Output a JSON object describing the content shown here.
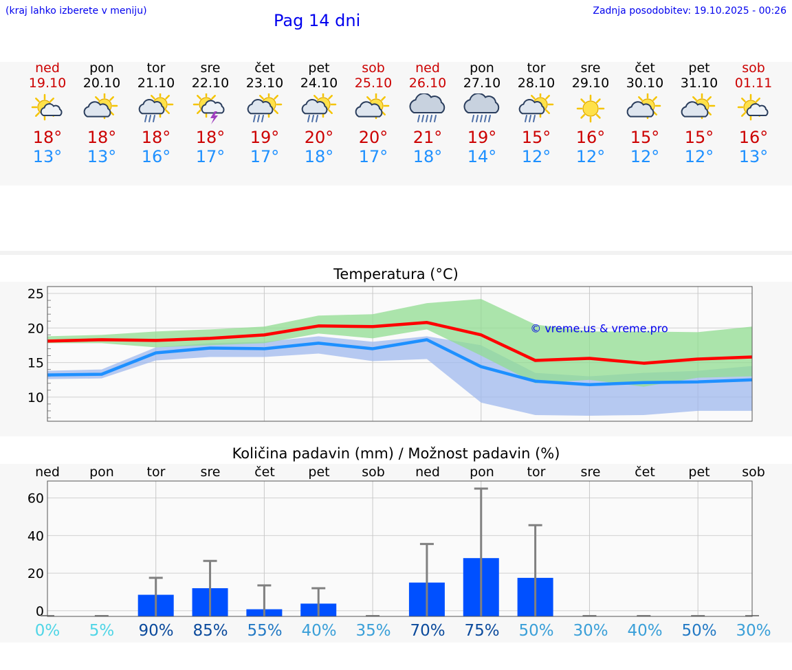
{
  "header": {
    "hint": "(kraj lahko izberete v meniju)",
    "title": "Pag 14 dni",
    "updated": "Zadnja posodobitev: 19.10.2025 - 00:26"
  },
  "days": [
    {
      "name": "ned",
      "date": "19.10",
      "icon": "sun-cloud-icon",
      "max": "18°",
      "min": "13°",
      "weekend": true
    },
    {
      "name": "pon",
      "date": "20.10",
      "icon": "partly-cloudy-icon",
      "max": "18°",
      "min": "13°",
      "weekend": false
    },
    {
      "name": "tor",
      "date": "21.10",
      "icon": "sun-cloud-rain-icon",
      "max": "18°",
      "min": "16°",
      "weekend": false
    },
    {
      "name": "sre",
      "date": "22.10",
      "icon": "sun-cloud-thunder-icon",
      "max": "18°",
      "min": "17°",
      "weekend": false
    },
    {
      "name": "čet",
      "date": "23.10",
      "icon": "sun-cloud-rain-icon",
      "max": "19°",
      "min": "17°",
      "weekend": false
    },
    {
      "name": "pet",
      "date": "24.10",
      "icon": "sun-cloud-rain-icon",
      "max": "20°",
      "min": "18°",
      "weekend": false
    },
    {
      "name": "sob",
      "date": "25.10",
      "icon": "partly-cloudy-icon",
      "max": "20°",
      "min": "17°",
      "weekend": true
    },
    {
      "name": "ned",
      "date": "26.10",
      "icon": "heavy-rain-icon",
      "max": "21°",
      "min": "18°",
      "weekend": true
    },
    {
      "name": "pon",
      "date": "27.10",
      "icon": "heavy-rain-icon",
      "max": "19°",
      "min": "14°",
      "weekend": false
    },
    {
      "name": "tor",
      "date": "28.10",
      "icon": "sun-cloud-rain-icon",
      "max": "15°",
      "min": "12°",
      "weekend": false
    },
    {
      "name": "sre",
      "date": "29.10",
      "icon": "sun-icon",
      "max": "16°",
      "min": "12°",
      "weekend": false
    },
    {
      "name": "čet",
      "date": "30.10",
      "icon": "partly-cloudy-icon",
      "max": "15°",
      "min": "12°",
      "weekend": false
    },
    {
      "name": "pet",
      "date": "31.10",
      "icon": "partly-cloudy-icon",
      "max": "15°",
      "min": "12°",
      "weekend": false
    },
    {
      "name": "sob",
      "date": "01.11",
      "icon": "sun-cloud-icon",
      "max": "16°",
      "min": "13°",
      "weekend": true
    }
  ],
  "colors": {
    "max_line": "#ff0000",
    "min_line": "#1e90ff",
    "max_band": "#90dc90",
    "min_band": "#9fb8ee",
    "bar": "#0050ff",
    "whisker": "#808080"
  },
  "chart_data": [
    {
      "type": "line",
      "title": "Temperatura (°C)",
      "watermark": "© vreme.us & vreme.pro",
      "ylim": [
        6.5,
        26
      ],
      "yticks": [
        10,
        15,
        20,
        25
      ],
      "x": [
        0,
        1,
        2,
        3,
        4,
        5,
        6,
        7,
        8,
        9,
        10,
        11,
        12,
        13
      ],
      "series": [
        {
          "name": "max",
          "values": [
            18.1,
            18.3,
            18.2,
            18.5,
            19.0,
            20.3,
            20.2,
            20.8,
            19.0,
            15.3,
            15.6,
            14.9,
            15.5,
            15.8
          ]
        },
        {
          "name": "min",
          "values": [
            13.2,
            13.3,
            16.4,
            17.1,
            17.0,
            17.8,
            17.0,
            18.3,
            14.4,
            12.3,
            11.8,
            12.1,
            12.2,
            12.5
          ]
        }
      ],
      "bands": [
        {
          "name": "max-range",
          "upper": [
            18.8,
            19.0,
            19.5,
            19.8,
            20.2,
            21.8,
            22.0,
            23.6,
            24.2,
            20.5,
            19.5,
            19.5,
            19.4,
            20.2
          ],
          "lower": [
            17.8,
            17.8,
            17.2,
            17.5,
            17.8,
            19.2,
            18.5,
            19.8,
            16.0,
            12.0,
            12.5,
            11.5,
            12.8,
            13.0
          ]
        },
        {
          "name": "min-range",
          "upper": [
            13.8,
            14.0,
            17.2,
            17.8,
            18.0,
            18.8,
            18.0,
            18.8,
            17.5,
            13.5,
            13.0,
            13.5,
            13.8,
            14.5
          ],
          "lower": [
            12.6,
            12.7,
            15.3,
            15.8,
            15.8,
            16.3,
            15.2,
            15.5,
            9.2,
            7.4,
            7.3,
            7.4,
            8.0,
            8.0
          ]
        }
      ]
    },
    {
      "type": "bar",
      "title": "Količina padavin (mm) / Možnost padavin (%)",
      "ylim": [
        -3,
        69
      ],
      "yticks": [
        0,
        20,
        40,
        60
      ],
      "categories": [
        "ned",
        "pon",
        "tor",
        "sre",
        "čet",
        "pet",
        "sob",
        "ned",
        "pon",
        "tor",
        "sre",
        "čet",
        "pet",
        "sob"
      ],
      "values": [
        0,
        0,
        8.5,
        12,
        0.8,
        3.8,
        0,
        15,
        28,
        17.5,
        0,
        0,
        0,
        0
      ],
      "error_max": [
        0,
        0,
        17.5,
        26.5,
        13.5,
        12,
        0,
        35.5,
        65,
        45.5,
        0,
        0,
        0,
        0
      ],
      "probability": [
        "0%",
        "5%",
        "90%",
        "85%",
        "55%",
        "40%",
        "35%",
        "70%",
        "75%",
        "50%",
        "30%",
        "40%",
        "50%",
        "30%"
      ],
      "probability_colors": [
        "#4fd5e6",
        "#4fd5e6",
        "#0b4a9c",
        "#0b4a9c",
        "#2379c4",
        "#3a9fd8",
        "#3a9fd8",
        "#0b4a9c",
        "#0b4a9c",
        "#3a9fd8",
        "#3a9fd8",
        "#3a9fd8",
        "#2379c4",
        "#3a9fd8"
      ]
    }
  ]
}
